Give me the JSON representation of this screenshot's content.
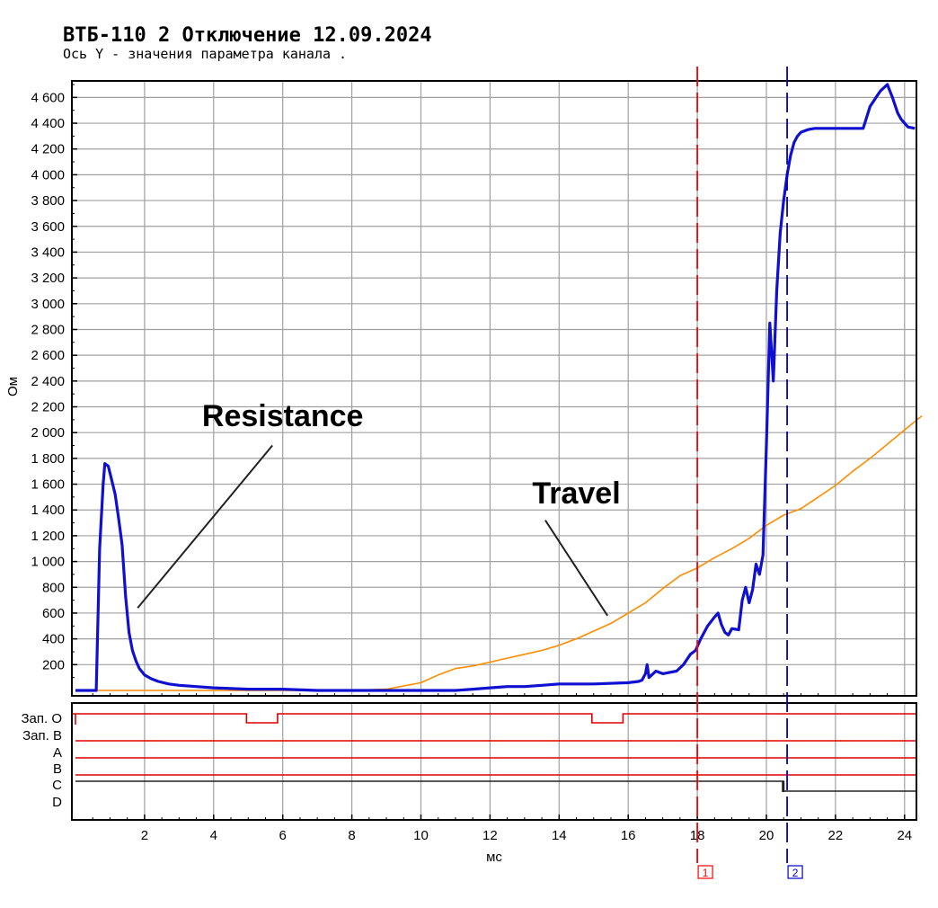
{
  "chart_data": {
    "type": "line",
    "title": "ВТБ-110 2 Отключение 12.09.2024",
    "subtitle": "Ось Y - значения параметра канала .",
    "xlabel": "мс",
    "ylabel": "Ом",
    "xlim": [
      0,
      24.5
    ],
    "ylim": [
      0,
      4800
    ],
    "grid": true,
    "x_ticks": [
      2,
      4,
      6,
      8,
      10,
      12,
      14,
      16,
      18,
      20,
      22,
      24
    ],
    "x_tick_labels": [
      "2",
      "4",
      "6",
      "8",
      "10",
      "12",
      "14",
      "16",
      "18",
      "20",
      "22",
      "24"
    ],
    "y_ticks": [
      200,
      400,
      600,
      800,
      1000,
      1200,
      1400,
      1600,
      1800,
      2000,
      2200,
      2400,
      2600,
      2800,
      3000,
      3200,
      3400,
      3600,
      3800,
      4000,
      4200,
      4400,
      4600
    ],
    "y_tick_labels": [
      "200",
      "400",
      "600",
      "800",
      "1 000",
      "1 200",
      "1 400",
      "1 600",
      "1 800",
      "2 000",
      "2 200",
      "2 400",
      "2 600",
      "2 800",
      "3 000",
      "3 200",
      "3 400",
      "3 600",
      "3 800",
      "4 000",
      "4 200",
      "4 400",
      "4 600"
    ],
    "annotations": [
      {
        "text": "Resistance",
        "at": [
          6.0,
          2050
        ],
        "arrow_from": [
          5.7,
          1900
        ],
        "arrow_to": [
          1.8,
          640
        ]
      },
      {
        "text": "Travel",
        "at": [
          14.5,
          1450
        ],
        "arrow_from": [
          13.6,
          1320
        ],
        "arrow_to": [
          15.4,
          580
        ]
      }
    ],
    "series": [
      {
        "color": "#1010d0",
        "x": [
          0.0,
          0.6,
          0.7,
          0.8,
          0.85,
          0.95,
          1.05,
          1.15,
          1.25,
          1.35,
          1.45,
          1.55,
          1.65,
          1.75,
          1.85,
          2.0,
          2.2,
          2.4,
          2.7,
          3.0,
          3.5,
          4.0,
          5.0,
          6.0,
          7.0,
          8.0,
          9.0,
          10.0,
          11.0,
          11.5,
          12.0,
          12.5,
          13.0,
          13.5,
          14.0,
          15.0,
          16.0,
          16.3,
          16.4,
          16.5,
          16.55,
          16.6,
          16.8,
          17.0,
          17.2,
          17.4,
          17.6,
          17.8,
          17.95,
          18.1,
          18.3,
          18.5,
          18.6,
          18.7,
          18.8,
          18.9,
          19.0,
          19.2,
          19.3,
          19.4,
          19.5,
          19.6,
          19.7,
          19.8,
          19.9,
          20.0,
          20.1,
          20.2,
          20.3,
          20.4,
          20.5,
          20.6,
          20.7,
          20.8,
          20.9,
          21.0,
          21.2,
          21.4,
          21.6,
          21.8,
          22.0,
          22.2,
          22.4,
          22.6,
          22.8,
          23.0,
          23.1,
          23.2,
          23.3,
          23.5,
          23.65,
          23.8,
          23.9,
          24.1,
          24.3
        ],
        "y": [
          0,
          0,
          1100,
          1600,
          1760,
          1740,
          1630,
          1520,
          1330,
          1130,
          730,
          450,
          310,
          230,
          170,
          120,
          90,
          70,
          50,
          40,
          30,
          20,
          10,
          10,
          0,
          0,
          0,
          0,
          0,
          10,
          20,
          30,
          30,
          40,
          50,
          50,
          60,
          70,
          80,
          130,
          200,
          100,
          150,
          130,
          140,
          150,
          200,
          280,
          310,
          400,
          500,
          570,
          600,
          510,
          450,
          430,
          480,
          470,
          700,
          800,
          680,
          780,
          980,
          900,
          1050,
          1900,
          2850,
          2400,
          3100,
          3550,
          3800,
          4000,
          4150,
          4250,
          4300,
          4330,
          4350,
          4360,
          4360,
          4360,
          4360,
          4360,
          4360,
          4360,
          4360,
          4530,
          4570,
          4610,
          4650,
          4700,
          4600,
          4480,
          4430,
          4370,
          4360
        ]
      },
      {
        "color": "#ff8c00",
        "x": [
          0.0,
          2.0,
          5.0,
          8.0,
          9.0,
          10.0,
          10.5,
          11.0,
          11.5,
          12.0,
          12.5,
          13.0,
          13.5,
          14.0,
          14.5,
          15.0,
          15.5,
          16.0,
          16.5,
          17.0,
          17.5,
          18.0,
          18.5,
          19.0,
          19.5,
          20.0,
          20.5,
          21.0,
          21.5,
          22.0,
          22.5,
          23.0,
          23.5,
          24.0,
          24.5
        ],
        "y": [
          0,
          0,
          0,
          0,
          10,
          60,
          120,
          170,
          190,
          220,
          250,
          280,
          310,
          350,
          400,
          460,
          520,
          600,
          680,
          790,
          890,
          950,
          1030,
          1100,
          1180,
          1280,
          1360,
          1410,
          1500,
          1590,
          1700,
          1800,
          1910,
          2020,
          2130
        ]
      }
    ]
  },
  "markers": [
    {
      "label": "1",
      "x": 18.0,
      "color": "#ff0000"
    },
    {
      "label": "2",
      "x": 20.6,
      "color": "#0000cc"
    }
  ],
  "channels": {
    "labels": [
      "Зап. О",
      "Зап. В",
      "A",
      "B",
      "C",
      "D"
    ],
    "zap_o_low_intervals": [
      [
        4.95,
        5.85
      ],
      [
        14.95,
        15.85
      ]
    ],
    "c_step_x": 20.5
  }
}
